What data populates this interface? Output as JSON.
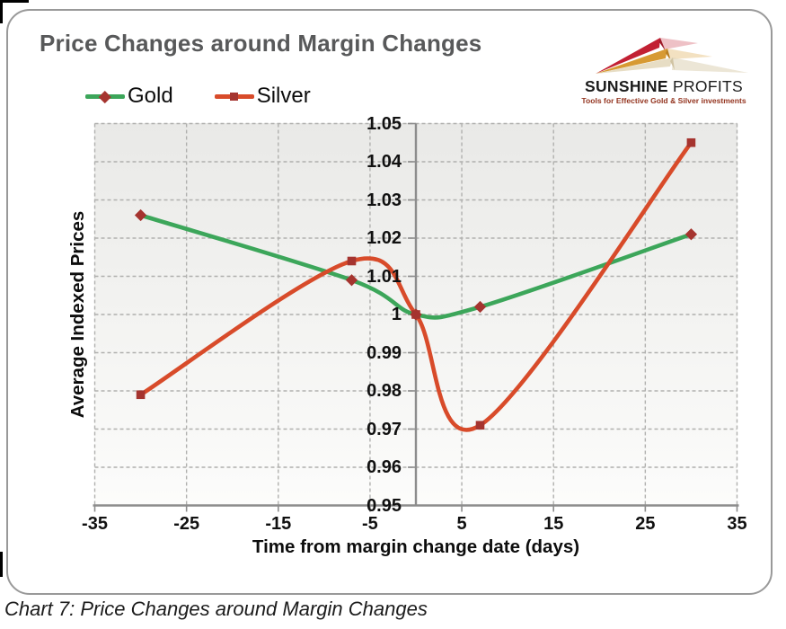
{
  "header": {
    "title": "Price Changes around Margin Changes"
  },
  "legend": [
    {
      "label": "Gold",
      "line_color": "#3ca65a",
      "marker": "diamond",
      "marker_color": "#a5342f"
    },
    {
      "label": "Silver",
      "line_color": "#d84b2a",
      "marker": "square",
      "marker_color": "#a5342f"
    }
  ],
  "logo": {
    "name": "SUNSHINE",
    "name2": " PROFITS",
    "tagline": "Tools for Effective Gold & Silver investments"
  },
  "caption": "Chart 7: Price Changes around Margin Changes",
  "chart_data": {
    "type": "line",
    "x": [
      -30,
      -7,
      0,
      7,
      30
    ],
    "series": [
      {
        "name": "Gold",
        "values": [
          1.026,
          1.009,
          1.0,
          1.002,
          1.021
        ],
        "color": "#3ca65a",
        "marker": "diamond",
        "marker_color": "#a5342f"
      },
      {
        "name": "Silver",
        "values": [
          0.979,
          1.014,
          1.0,
          0.971,
          1.045
        ],
        "color": "#d84b2a",
        "marker": "square",
        "marker_color": "#a5342f"
      }
    ],
    "title": "Price Changes around Margin Changes",
    "xlabel": "Time from margin change date (days)",
    "ylabel": "Average Indexed Prices",
    "xlim": [
      -35,
      35
    ],
    "ylim": [
      0.95,
      1.05
    ],
    "xticks": [
      -35,
      -25,
      -15,
      -5,
      5,
      15,
      25,
      35
    ],
    "yticks": [
      0.95,
      0.96,
      0.97,
      0.98,
      0.99,
      1,
      1.01,
      1.02,
      1.03,
      1.04,
      1.05
    ],
    "ytick_labels": [
      "0.95",
      "0.96",
      "0.97",
      "0.98",
      "0.99",
      "1",
      "1.01",
      "1.02",
      "1.03",
      "1.04",
      "1.05"
    ],
    "grid": "dashed",
    "smoothing": "spline",
    "legend_position": "top-left"
  }
}
